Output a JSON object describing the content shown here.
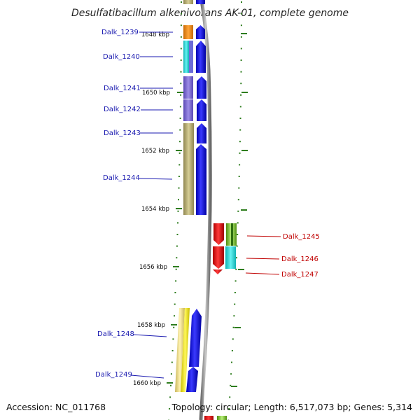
{
  "title": "Desulfatibacillum alkenivorans AK-01, complete genome",
  "footer": {
    "accession": "Accession: NC_011768",
    "summary": "Topology: circular; Length: 6,517,073 bp; Genes: 5,314"
  },
  "colors": {
    "backbone": "#8c8c8c",
    "tick": "#2e7d1e",
    "forward_label": "#1a1ab0",
    "reverse_label": "#c00000",
    "forward_arrow": "#0000ee",
    "reverse_arrow": "#ee0000"
  },
  "kbp_ticks": [
    "1648 kbp",
    "1650 kbp",
    "1652 kbp",
    "1654 kbp",
    "1656 kbp",
    "1658 kbp",
    "1660 kbp"
  ],
  "forward_genes": [
    {
      "label": "Dalk_1239",
      "cog": "#ee8a1a"
    },
    {
      "label": "Dalk_1240",
      "cog": "#19d6d6"
    },
    {
      "label": "Dalk_1241",
      "cog": "#7d6ad2"
    },
    {
      "label": "Dalk_1242",
      "cog": "#7d6ad2"
    },
    {
      "label": "Dalk_1243",
      "cog": "#b8ae72"
    },
    {
      "label": "Dalk_1244",
      "cog": "#b8ae72"
    },
    {
      "label": "Dalk_1248",
      "cog": "#eedc7a"
    },
    {
      "label": "Dalk_1249",
      "cog": "#f2e60e"
    }
  ],
  "reverse_genes": [
    {
      "label": "Dalk_1245",
      "cog": "#86c23a"
    },
    {
      "label": "Dalk_1246",
      "cog": "#19d0d6"
    },
    {
      "label": "Dalk_1247",
      "cog": "#ffffff"
    }
  ]
}
